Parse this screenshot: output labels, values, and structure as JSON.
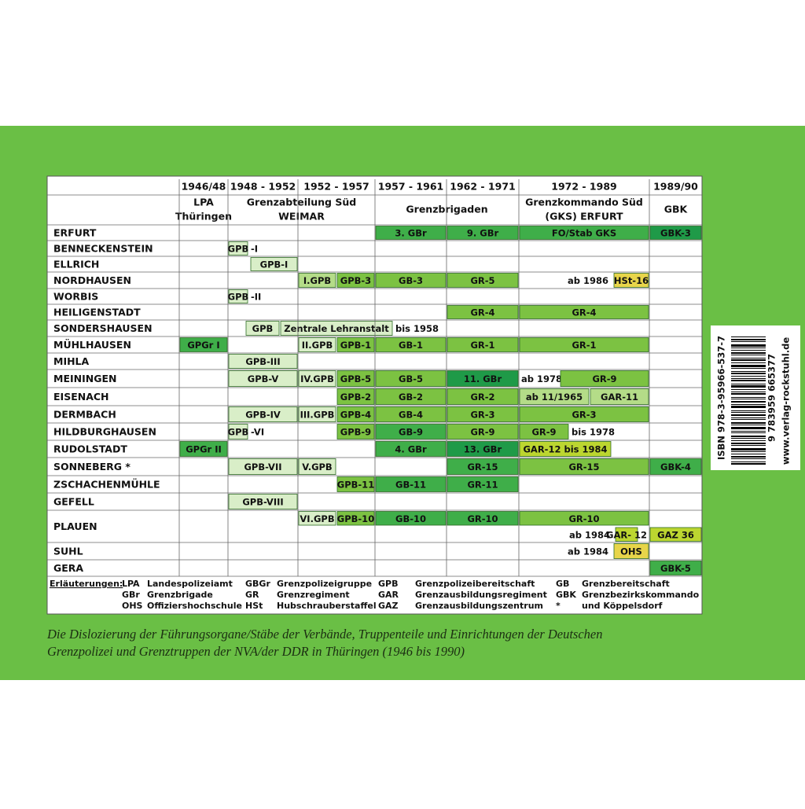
{
  "header": {
    "columns": [
      "1946/48",
      "1948 - 1952",
      "1952 - 1957",
      "1957 - 1961",
      "1962 - 1971",
      "1972 - 1989",
      "1989/90"
    ],
    "groups": [
      [
        "LPA",
        "Thüringen"
      ],
      [
        "Grenzabteilung Süd",
        "WEIMAR"
      ],
      [
        "Grenzbrigaden"
      ],
      [
        "Grenzkommando Süd",
        "(GKS) ERFURT"
      ],
      [
        "GBK"
      ]
    ]
  },
  "table": {
    "rows": [
      {
        "label": "ERFURT",
        "cells": [
          "3. GBr",
          "9. GBr",
          "FO/Stab GKS",
          "GBK-3"
        ]
      },
      {
        "label": "BENNECKENSTEIN",
        "cells": [
          "GPB",
          "-I"
        ]
      },
      {
        "label": "ELLRICH",
        "cells": [
          "GPB-I"
        ]
      },
      {
        "label": "NORDHAUSEN",
        "cells": [
          "I.GPB",
          "GPB-3",
          "GB-3",
          "GR-5",
          "ab 1986",
          "HSt-16"
        ]
      },
      {
        "label": "WORBIS",
        "cells": [
          "GPB",
          "-II"
        ]
      },
      {
        "label": "HEILIGENSTADT",
        "cells": [
          "GR-4",
          "GR-4"
        ]
      },
      {
        "label": "SONDERSHAUSEN",
        "cells": [
          "GPB",
          "Zentrale Lehranstalt",
          "bis 1958"
        ]
      },
      {
        "label": "MÜHLHAUSEN",
        "cells": [
          "GPGr I",
          "II.GPB",
          "GPB-1",
          "GB-1",
          "GR-1",
          "GR-1"
        ]
      },
      {
        "label": "MIHLA",
        "cells": [
          "GPB-III"
        ]
      },
      {
        "label": "MEININGEN",
        "cells": [
          "GPB-V",
          "IV.GPB",
          "GPB-5",
          "GB-5",
          "11. GBr",
          "ab 1978",
          "GR-9"
        ]
      },
      {
        "label": "EISENACH",
        "cells": [
          "GPB-2",
          "GB-2",
          "GR-2",
          "ab 11/1965",
          "GAR-11"
        ]
      },
      {
        "label": "DERMBACH",
        "cells": [
          "GPB-IV",
          "III.GPB",
          "GPB-4",
          "GB-4",
          "GR-3",
          "GR-3"
        ]
      },
      {
        "label": "HILDBURGHAUSEN",
        "cells": [
          "GPB",
          "-VI",
          "GPB-9",
          "GB-9",
          "GR-9",
          "GR-9",
          "bis 1978"
        ]
      },
      {
        "label": "RUDOLSTADT",
        "cells": [
          "GPGr II",
          "4. GBr",
          "13. GBr",
          "GAR-12 bis 1984"
        ]
      },
      {
        "label": "SONNEBERG *",
        "cells": [
          "GPB-VII",
          "V.GPB",
          "GR-15",
          "GR-15",
          "GBK-4"
        ]
      },
      {
        "label": "ZSCHACHENMÜHLE",
        "cells": [
          "GPB-11",
          "GB-11",
          "GR-11"
        ]
      },
      {
        "label": "GEFELL",
        "cells": [
          "GPB-VIII"
        ]
      },
      {
        "label": "PLAUEN",
        "cells": [
          "VI.GPB",
          "GPB-10",
          "GB-10",
          "GR-10",
          "GR-10",
          "ab 1984",
          "GAR- 12",
          "GAZ 36"
        ]
      },
      {
        "label": "SUHL",
        "cells": [
          "ab 1984",
          "OHS"
        ]
      },
      {
        "label": "GERA",
        "cells": [
          "GBK-5"
        ]
      }
    ]
  },
  "legend": {
    "title": "Erläuterungen:",
    "items": [
      [
        "LPA",
        "Landespolizeiamt"
      ],
      [
        "GBr",
        "Grenzbrigade"
      ],
      [
        "OHS",
        "Offiziershochschule"
      ],
      [
        "GBGr",
        "Grenzpolizeigruppe"
      ],
      [
        "GR",
        "Grenzregiment"
      ],
      [
        "HSt",
        "Hubschrauberstaffel"
      ],
      [
        "GPB",
        "Grenzpolizeibereitschaft"
      ],
      [
        "GAR",
        "Grenzausbildungsregiment"
      ],
      [
        "GAZ",
        "Grenzausbildungszentrum"
      ],
      [
        "GB",
        "Grenzbereitschaft"
      ],
      [
        "GBK",
        "Grenzbezirkskommando"
      ],
      [
        "*",
        "und Köppelsdorf"
      ]
    ]
  },
  "caption": [
    "Die Dislozierung der Führungsorgane/Stäbe der Verbände, Truppenteile und Einrichtungen der Deutschen",
    "Grenzpolizei und Grenztruppen der NVA/der DDR in Thüringen (1946 bis 1990)"
  ],
  "sticker": {
    "isbn": "ISBN 978-3-95966-537-7",
    "digits": "9 783959 665377",
    "url": "www.verlag-rockstuhl.de"
  }
}
